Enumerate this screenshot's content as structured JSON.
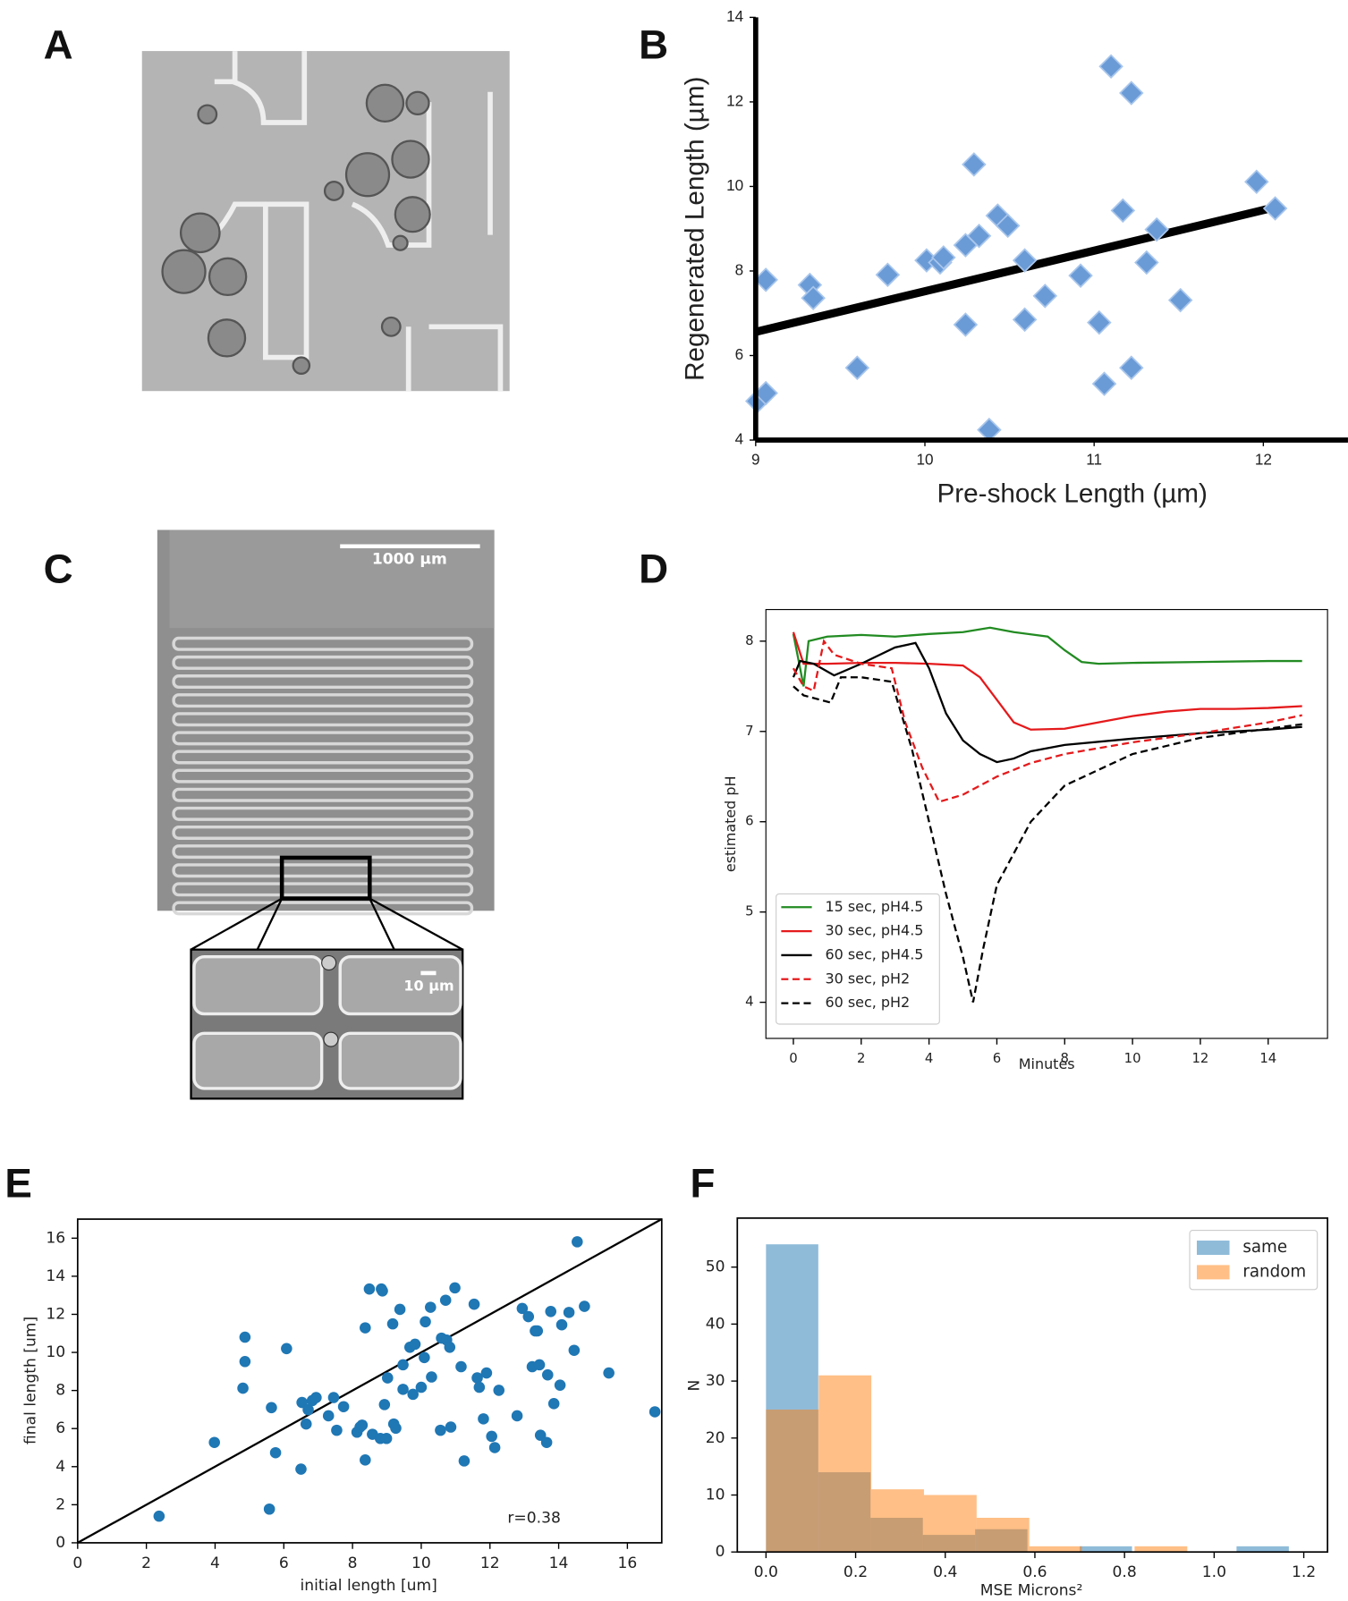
{
  "images": [
    {
      "panel": "A"
    },
    {
      "panel": "C",
      "scale_bar_label": "1000 µm",
      "inset_scale_bar_label": "10 µm"
    }
  ],
  "chart_data": [
    {
      "type": "scatter",
      "panel": "B",
      "xlabel": "Pre-shock Length  (µm)",
      "ylabel": "Regenerated Length  (µm)",
      "color": "#6b9bd6",
      "xlim": [
        9,
        12.5
      ],
      "ylim": [
        4,
        14
      ],
      "xticks": [
        9,
        10,
        11,
        12
      ],
      "yticks": [
        4,
        6,
        8,
        10,
        12,
        14
      ],
      "x": [
        9.01,
        9.06,
        9.06,
        9.32,
        9.34,
        9.6,
        9.78,
        10.01,
        10.09,
        10.11,
        10.24,
        10.24,
        10.32,
        10.29,
        10.38,
        10.43,
        10.49,
        10.59,
        10.59,
        10.71,
        10.92,
        11.03,
        11.06,
        11.1,
        11.17,
        11.22,
        11.22,
        11.31,
        11.37,
        11.51,
        11.96,
        12.07
      ],
      "values": [
        4.92,
        5.11,
        7.79,
        7.67,
        7.36,
        5.71,
        7.91,
        8.25,
        8.2,
        8.32,
        6.73,
        8.61,
        8.83,
        10.52,
        4.24,
        9.31,
        9.07,
        8.25,
        6.85,
        7.41,
        7.89,
        6.78,
        5.33,
        12.84,
        9.43,
        12.21,
        5.71,
        8.2,
        8.98,
        7.31,
        10.11,
        9.48
      ],
      "fit_line": {
        "x": [
          9,
          12.02
        ],
        "y": [
          6.56,
          9.46
        ],
        "color": "#000000"
      }
    },
    {
      "type": "line",
      "panel": "D",
      "xlabel": "Minutes",
      "ylabel": "estimated pH",
      "xlim": [
        -0.81,
        15.75
      ],
      "ylim": [
        3.6,
        8.35
      ],
      "xticks": [
        0,
        2,
        4,
        6,
        8,
        10,
        12,
        14
      ],
      "yticks": [
        4,
        5,
        6,
        7,
        8
      ],
      "legend": "lower left",
      "series": [
        {
          "name": "15 sec, pH4.5",
          "color": "#228b22",
          "linestyle": "solid",
          "x": [
            0,
            0.2,
            0.3,
            0.45,
            1,
            2,
            3,
            4,
            5,
            5.8,
            6.5,
            7.5,
            8,
            8.5,
            9,
            10,
            12,
            14,
            15
          ],
          "values": [
            8.08,
            7.7,
            7.5,
            8.0,
            8.05,
            8.07,
            8.05,
            8.08,
            8.1,
            8.15,
            8.1,
            8.05,
            7.9,
            7.77,
            7.75,
            7.76,
            7.77,
            7.78,
            7.78
          ]
        },
        {
          "name": "30 sec, pH4.5",
          "color": "#e41a1c",
          "linestyle": "solid",
          "x": [
            0,
            0.3,
            1,
            2,
            3,
            4,
            5,
            5.5,
            6,
            6.5,
            7,
            8,
            9,
            10,
            11,
            12,
            13,
            14,
            15
          ],
          "values": [
            8.1,
            7.75,
            7.75,
            7.76,
            7.76,
            7.75,
            7.73,
            7.6,
            7.35,
            7.1,
            7.02,
            7.03,
            7.1,
            7.17,
            7.22,
            7.25,
            7.25,
            7.26,
            7.28
          ]
        },
        {
          "name": "60 sec, pH4.5",
          "color": "#000000",
          "linestyle": "solid",
          "x": [
            0,
            0.2,
            0.6,
            1.2,
            2,
            3,
            3.6,
            4,
            4.5,
            5,
            5.5,
            6,
            6.5,
            7,
            8,
            10,
            12,
            14,
            15
          ],
          "values": [
            7.6,
            7.78,
            7.75,
            7.62,
            7.75,
            7.93,
            7.98,
            7.7,
            7.2,
            6.9,
            6.75,
            6.66,
            6.7,
            6.78,
            6.85,
            6.92,
            6.98,
            7.02,
            7.05
          ]
        },
        {
          "name": "30 sec, pH2",
          "color": "#e41a1c",
          "linestyle": "dashed",
          "x": [
            0,
            0.3,
            0.6,
            0.9,
            1.2,
            2,
            2.9,
            3.3,
            3.8,
            4.3,
            5,
            6,
            7,
            8,
            10,
            12,
            14,
            15
          ],
          "values": [
            7.7,
            7.5,
            7.45,
            8.0,
            7.85,
            7.75,
            7.7,
            7.1,
            6.6,
            6.22,
            6.3,
            6.5,
            6.65,
            6.75,
            6.88,
            6.98,
            7.1,
            7.18
          ]
        },
        {
          "name": "60 sec, pH2",
          "color": "#000000",
          "linestyle": "dashed",
          "x": [
            0,
            0.3,
            1.1,
            1.4,
            2,
            2.9,
            3.5,
            4,
            4.5,
            5,
            5.3,
            5.6,
            6,
            7,
            8,
            10,
            12,
            14,
            15
          ],
          "values": [
            7.5,
            7.4,
            7.32,
            7.6,
            7.6,
            7.55,
            6.8,
            6.0,
            5.2,
            4.5,
            4.0,
            4.6,
            5.3,
            6.0,
            6.4,
            6.75,
            6.93,
            7.03,
            7.08
          ]
        }
      ]
    },
    {
      "type": "scatter",
      "panel": "E",
      "xlabel": "initial length [um]",
      "ylabel": "final length [um]",
      "color": "#1f77b4",
      "annotation": "r=0.38",
      "xlim": [
        0,
        17
      ],
      "ylim": [
        0,
        17
      ],
      "xticks": [
        0,
        2,
        4,
        6,
        8,
        10,
        12,
        14,
        16
      ],
      "yticks": [
        0,
        2,
        4,
        6,
        8,
        10,
        12,
        14,
        16
      ],
      "x": [
        2.37,
        3.98,
        4.81,
        4.87,
        4.87,
        5.64,
        5.76,
        5.58,
        6.08,
        6.5,
        6.53,
        6.65,
        6.71,
        6.83,
        6.94,
        7.3,
        7.45,
        7.54,
        7.74,
        8.13,
        8.22,
        8.28,
        8.37,
        8.37,
        8.49,
        8.58,
        8.81,
        8.84,
        8.87,
        8.93,
        8.99,
        9.02,
        9.17,
        9.2,
        9.26,
        9.38,
        9.47,
        9.47,
        9.67,
        9.76,
        9.82,
        10.0,
        10.09,
        10.12,
        10.27,
        10.3,
        10.56,
        10.59,
        10.71,
        10.74,
        10.83,
        10.86,
        10.98,
        11.16,
        11.25,
        11.54,
        11.63,
        11.69,
        11.81,
        11.9,
        12.05,
        12.14,
        12.26,
        12.79,
        12.94,
        13.12,
        13.23,
        13.32,
        13.38,
        13.44,
        13.47,
        13.65,
        13.68,
        13.77,
        13.86,
        14.04,
        14.09,
        14.3,
        14.45,
        14.54,
        14.75,
        15.46,
        16.8
      ],
      "values": [
        1.4,
        5.27,
        8.12,
        9.52,
        10.8,
        7.1,
        4.73,
        1.77,
        10.2,
        3.87,
        7.37,
        6.24,
        6.99,
        7.47,
        7.63,
        6.67,
        7.63,
        5.91,
        7.15,
        5.81,
        6.08,
        6.18,
        4.35,
        11.29,
        13.33,
        5.7,
        5.48,
        13.33,
        13.23,
        7.26,
        5.48,
        8.66,
        11.5,
        6.24,
        6.02,
        12.26,
        9.35,
        8.06,
        10.27,
        7.8,
        10.43,
        8.17,
        9.73,
        11.61,
        12.37,
        8.71,
        5.91,
        10.75,
        12.74,
        10.65,
        10.27,
        6.08,
        13.39,
        9.25,
        4.3,
        12.53,
        8.66,
        8.17,
        6.51,
        8.92,
        5.59,
        5.0,
        8.01,
        6.67,
        12.31,
        11.88,
        9.25,
        11.13,
        11.13,
        9.35,
        5.65,
        5.27,
        8.82,
        12.15,
        7.31,
        8.28,
        11.45,
        12.1,
        10.11,
        15.81,
        12.42,
        8.92,
        6.88
      ],
      "reference_line": {
        "x": [
          0,
          17
        ],
        "y": [
          0,
          17
        ],
        "color": "#000000"
      }
    },
    {
      "type": "histogram",
      "panel": "F",
      "xlabel": "MSE Microns²",
      "ylabel": "N",
      "legend": "upper right",
      "xlim": [
        -0.064,
        1.253
      ],
      "ylim": [
        0,
        58.6
      ],
      "xticks": [
        {
          "value": 0,
          "label": "0.0"
        },
        0.2,
        0.4,
        0.6,
        0.8,
        {
          "value": 1,
          "label": "1.0"
        },
        1.2
      ],
      "yticks": [
        0,
        10,
        20,
        30,
        40,
        50
      ],
      "series": [
        {
          "name": "same",
          "color": "#1f77b4",
          "bins": [
            0,
            0.1167,
            0.2333,
            0.35,
            0.4667,
            0.5833,
            0.7,
            0.8167,
            0.9333,
            1.05,
            1.1667
          ],
          "values": [
            54,
            14,
            6,
            3,
            4,
            0,
            1,
            0,
            0,
            1
          ]
        },
        {
          "name": "random",
          "color": "#ff7f0e",
          "bins": [
            0,
            0.1175,
            0.235,
            0.3525,
            0.47,
            0.5875,
            0.705,
            0.8225,
            0.94
          ],
          "values": [
            25,
            31,
            11,
            10,
            6,
            1,
            0,
            1
          ]
        }
      ]
    }
  ]
}
